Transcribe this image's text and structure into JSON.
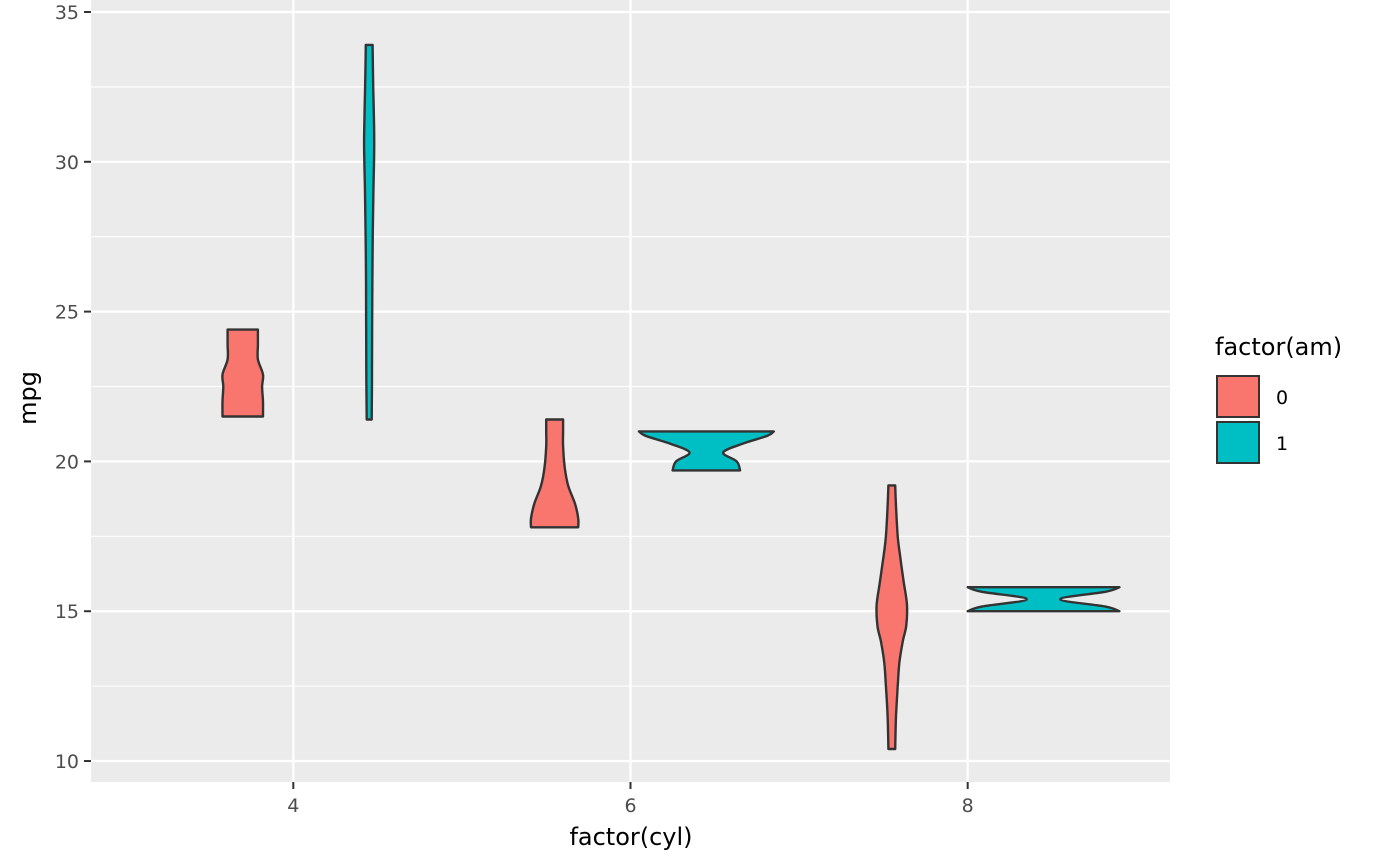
{
  "chart_data": {
    "type": "violin",
    "xlabel": "factor(cyl)",
    "ylabel": "mpg",
    "x_ticks": [
      "4",
      "6",
      "8"
    ],
    "y_ticks": [
      10,
      15,
      20,
      25,
      30,
      35
    ],
    "ylim": [
      9.3,
      35.4
    ],
    "xlim": [
      2.8,
      9.2
    ],
    "grid": true,
    "legend": {
      "title": "factor(am)",
      "position": "right",
      "entries": [
        {
          "label": "0",
          "color": "#F8766D"
        },
        {
          "label": "1",
          "color": "#00BFC4"
        }
      ]
    },
    "series": [
      {
        "name": "0",
        "color": "#F8766D",
        "x": 3.7,
        "profile": [
          [
            21.5,
            0.12
          ],
          [
            22.0,
            0.12
          ],
          [
            22.5,
            0.115
          ],
          [
            22.9,
            0.12
          ],
          [
            23.4,
            0.09
          ],
          [
            23.9,
            0.09
          ],
          [
            24.4,
            0.09
          ]
        ]
      },
      {
        "name": "1",
        "color": "#00BFC4",
        "x": 4.45,
        "profile": [
          [
            21.4,
            0.015
          ],
          [
            23,
            0.017
          ],
          [
            25,
            0.018
          ],
          [
            27,
            0.02
          ],
          [
            29,
            0.025
          ],
          [
            30.5,
            0.03
          ],
          [
            31.5,
            0.028
          ],
          [
            32.5,
            0.024
          ],
          [
            33.9,
            0.02
          ]
        ]
      },
      {
        "name": "0",
        "color": "#F8766D",
        "x": 5.55,
        "profile": [
          [
            17.8,
            0.14
          ],
          [
            18.1,
            0.14
          ],
          [
            18.6,
            0.12
          ],
          [
            19.2,
            0.08
          ],
          [
            19.8,
            0.06
          ],
          [
            20.5,
            0.05
          ],
          [
            21.0,
            0.05
          ],
          [
            21.4,
            0.05
          ]
        ]
      },
      {
        "name": "1",
        "color": "#00BFC4",
        "x": 6.45,
        "profile": [
          [
            19.7,
            0.2
          ],
          [
            20.0,
            0.18
          ],
          [
            20.3,
            0.1
          ],
          [
            20.6,
            0.22
          ],
          [
            20.85,
            0.36
          ],
          [
            21.0,
            0.4
          ]
        ]
      },
      {
        "name": "0",
        "color": "#F8766D",
        "x": 7.55,
        "profile": [
          [
            10.4,
            0.02
          ],
          [
            11.5,
            0.025
          ],
          [
            12.5,
            0.035
          ],
          [
            13.3,
            0.045
          ],
          [
            14.0,
            0.065
          ],
          [
            14.5,
            0.085
          ],
          [
            15.2,
            0.09
          ],
          [
            16.0,
            0.07
          ],
          [
            16.8,
            0.05
          ],
          [
            17.5,
            0.035
          ],
          [
            18.5,
            0.025
          ],
          [
            19.2,
            0.02
          ]
        ]
      },
      {
        "name": "1",
        "color": "#00BFC4",
        "x": 8.45,
        "profile": [
          [
            15.0,
            0.45
          ],
          [
            15.15,
            0.37
          ],
          [
            15.4,
            0.1
          ],
          [
            15.65,
            0.37
          ],
          [
            15.8,
            0.45
          ]
        ]
      }
    ]
  }
}
